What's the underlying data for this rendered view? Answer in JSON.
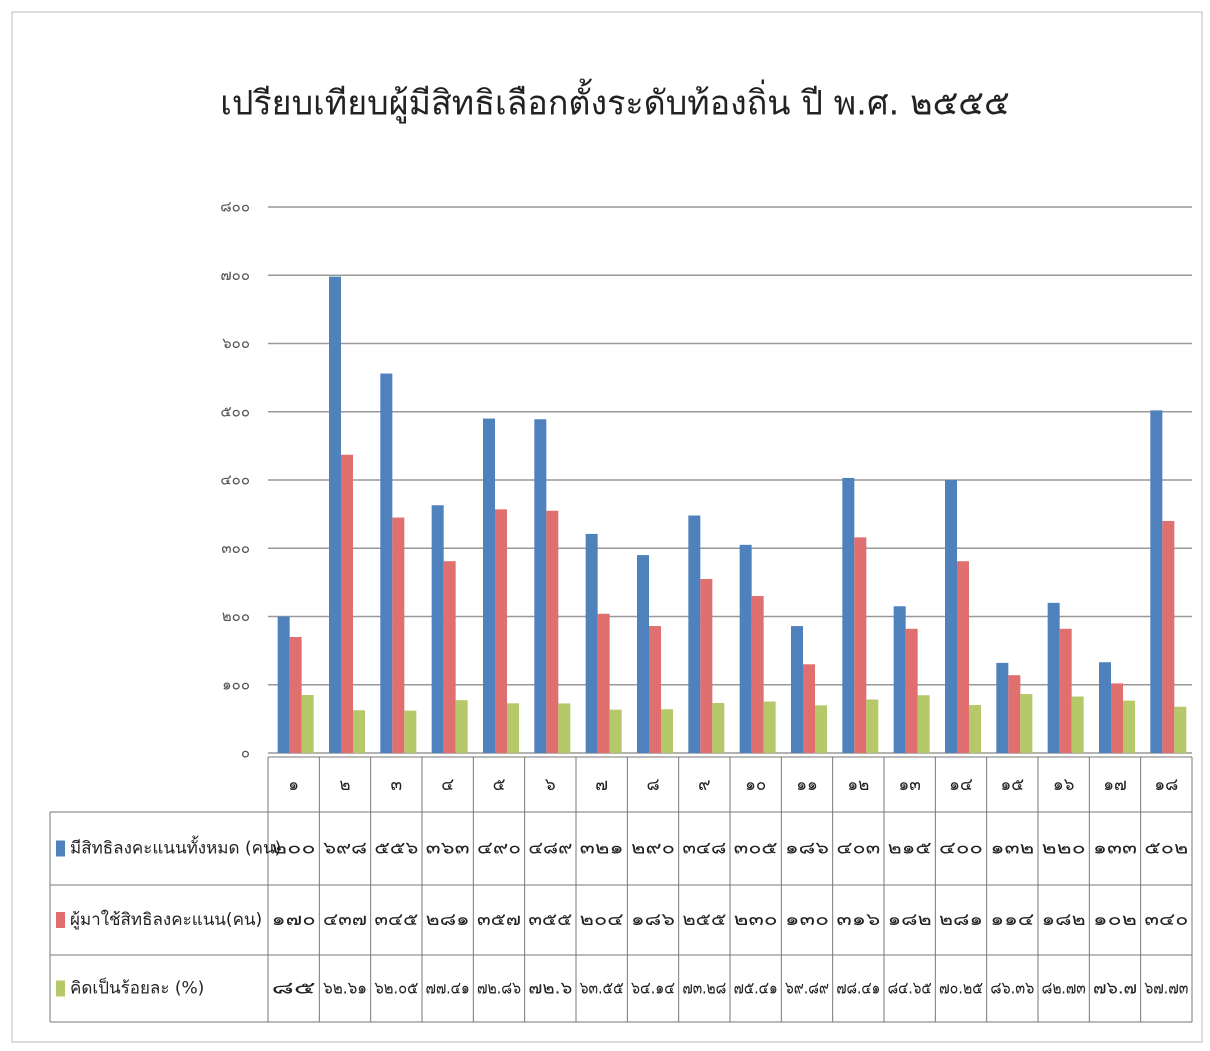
{
  "chart_data": {
    "type": "bar",
    "title": "เปรียบเทียบผู้มีสิทธิเลือกตั้งระดับท้องถิ่น ปี พ.ศ. ๒๕๕๕",
    "categories": [
      "๑",
      "๒",
      "๓",
      "๔",
      "๕",
      "๖",
      "๗",
      "๘",
      "๙",
      "๑๐",
      "๑๑",
      "๑๒",
      "๑๓",
      "๑๔",
      "๑๕",
      "๑๖",
      "๑๗",
      "๑๘"
    ],
    "series": [
      {
        "name": "มีสิทธิลงคะแนนทั้งหมด (คน)",
        "color": "#4f81bd",
        "values": [
          200,
          698,
          556,
          363,
          490,
          489,
          321,
          290,
          348,
          305,
          186,
          403,
          215,
          400,
          132,
          220,
          133,
          502
        ],
        "value_labels": [
          "๒๐๐",
          "๖๙๘",
          "๕๕๖",
          "๓๖๓",
          "๔๙๐",
          "๔๘๙",
          "๓๒๑",
          "๒๙๐",
          "๓๔๘",
          "๓๐๕",
          "๑๘๖",
          "๔๐๓",
          "๒๑๕",
          "๔๐๐",
          "๑๓๒",
          "๒๒๐",
          "๑๓๓",
          "๕๐๒"
        ]
      },
      {
        "name": "ผู้มาใช้สิทธิลงคะแนน(คน)",
        "color": "#e07070",
        "values": [
          170,
          437,
          345,
          281,
          357,
          355,
          204,
          186,
          255,
          230,
          130,
          316,
          182,
          281,
          114,
          182,
          102,
          340
        ],
        "value_labels": [
          "๑๗๐",
          "๔๓๗",
          "๓๔๕",
          "๒๘๑",
          "๓๕๗",
          "๓๕๕",
          "๒๐๔",
          "๑๘๖",
          "๒๕๕",
          "๒๓๐",
          "๑๓๐",
          "๓๑๖",
          "๑๘๒",
          "๒๘๑",
          "๑๑๔",
          "๑๘๒",
          "๑๐๒",
          "๓๔๐"
        ]
      },
      {
        "name": "คิดเป็นร้อยละ (%)",
        "color": "#b5c96a",
        "values": [
          85,
          62.61,
          62.05,
          77.41,
          72.86,
          72.6,
          63.55,
          64.14,
          73.28,
          75.41,
          69.89,
          78.41,
          84.65,
          70.25,
          86.36,
          82.73,
          76.7,
          67.73
        ],
        "value_labels": [
          "๘๕",
          "๖๒.๖๑",
          "๖๒.๐๕",
          "๗๗.๔๑",
          "๗๒.๘๖",
          "๗๒.๖",
          "๖๓.๕๕",
          "๖๔.๑๔",
          "๗๓.๒๘",
          "๗๕.๔๑",
          "๖๙.๘๙",
          "๗๘.๔๑",
          "๘๔.๖๕",
          "๗๐.๒๕",
          "๘๖.๓๖",
          "๘๒.๗๓",
          "๗๖.๗",
          "๖๗.๗๓"
        ]
      }
    ],
    "ylim": [
      0,
      800
    ],
    "yticks": [
      {
        "value": 0,
        "label": "๐"
      },
      {
        "value": 100,
        "label": "๑๐๐"
      },
      {
        "value": 200,
        "label": "๒๐๐"
      },
      {
        "value": 300,
        "label": "๓๐๐"
      },
      {
        "value": 400,
        "label": "๔๐๐"
      },
      {
        "value": 500,
        "label": "๕๐๐"
      },
      {
        "value": 600,
        "label": "๖๐๐"
      },
      {
        "value": 700,
        "label": "๗๐๐"
      },
      {
        "value": 800,
        "label": "๘๐๐"
      }
    ],
    "grid": true
  }
}
